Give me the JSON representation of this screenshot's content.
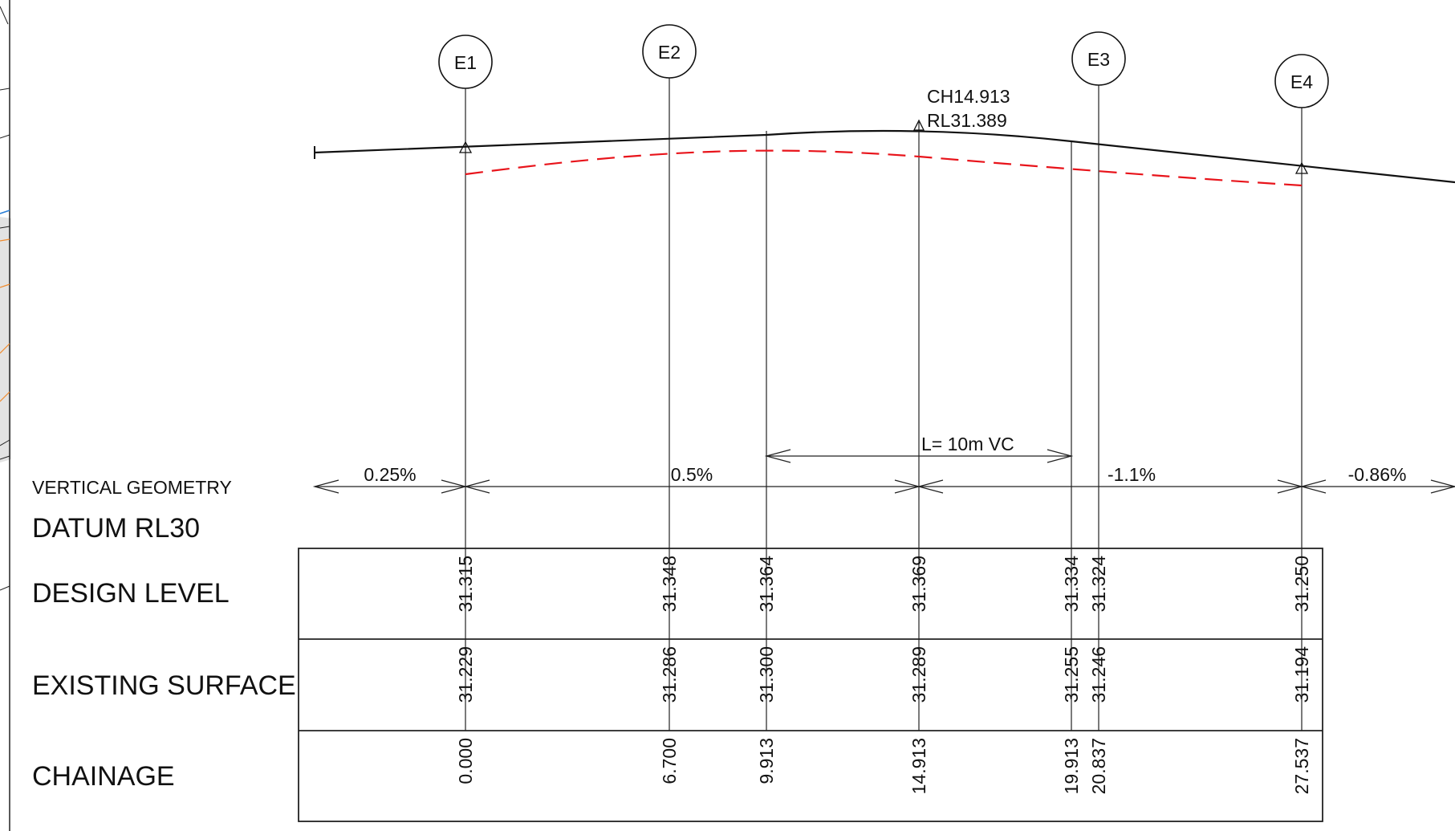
{
  "labels": {
    "vertical_geometry": "VERTICAL GEOMETRY",
    "datum": "DATUM RL30",
    "design_level": "DESIGN LEVEL",
    "existing_surface": "EXISTING SURFACE",
    "chainage": "CHAINAGE"
  },
  "crest": {
    "ch": "CH14.913",
    "rl": "RL31.389"
  },
  "vertical_curve_label": "L= 10m VC",
  "grades": [
    {
      "id": "g1",
      "text": "0.25%"
    },
    {
      "id": "g2",
      "text": "0.5%"
    },
    {
      "id": "g3",
      "text": "-1.1%"
    },
    {
      "id": "g4",
      "text": "-0.86%"
    }
  ],
  "markers": [
    "E1",
    "E2",
    "E3",
    "E4"
  ],
  "stations": [
    {
      "chainage": "0.000",
      "design": "31.315",
      "existing": "31.229"
    },
    {
      "chainage": "6.700",
      "design": "31.348",
      "existing": "31.286"
    },
    {
      "chainage": "9.913",
      "design": "31.364",
      "existing": "31.300"
    },
    {
      "chainage": "14.913",
      "design": "31.369",
      "existing": "31.289"
    },
    {
      "chainage": "19.913",
      "design": "31.334",
      "existing": "31.255"
    },
    {
      "chainage": "20.837",
      "design": "31.324",
      "existing": "31.246"
    },
    {
      "chainage": "27.537",
      "design": "31.250",
      "existing": "31.194"
    }
  ],
  "colors": {
    "design_line": "#111111",
    "existing_line": "#e8141b",
    "line_work": "#222222",
    "left_sheet_blue": "#2a7fd6",
    "left_sheet_orange": "#f08a2c"
  }
}
